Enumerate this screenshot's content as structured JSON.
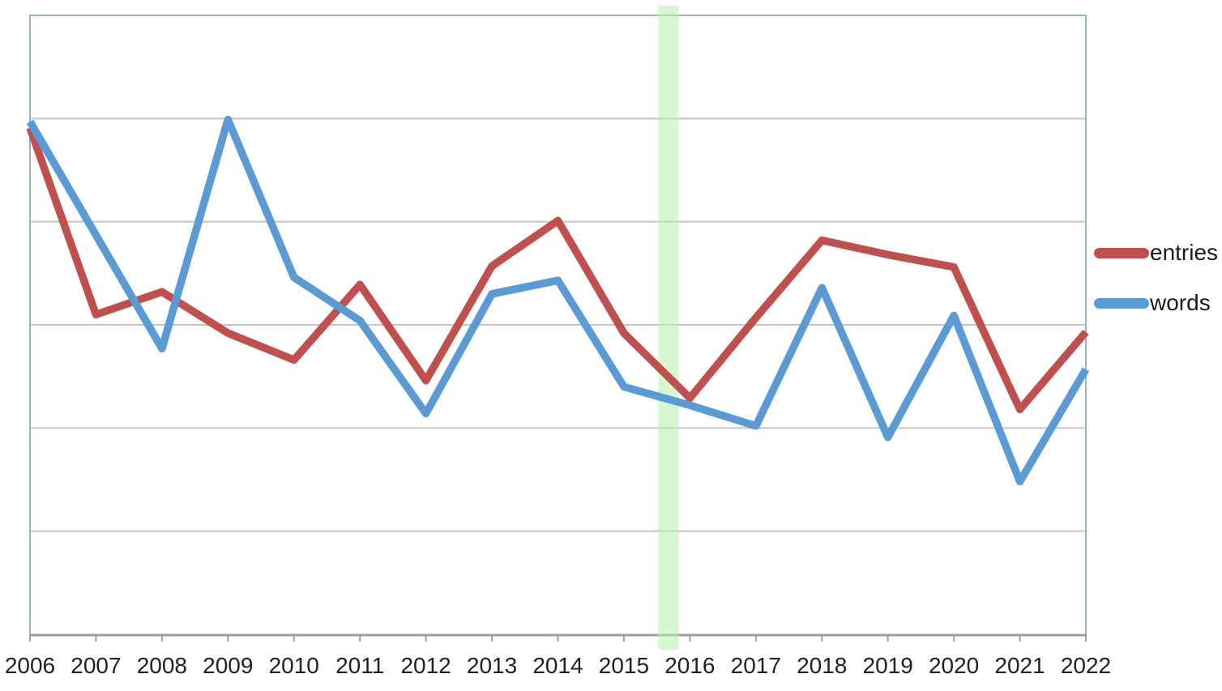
{
  "chart_data": {
    "type": "line",
    "title": "",
    "xlabel": "",
    "ylabel": "",
    "x_labels": [
      "2006",
      "2007",
      "2008",
      "2009",
      "2010",
      "2011",
      "2012",
      "2013",
      "2014",
      "2015",
      "2016",
      "2017",
      "2018",
      "2019",
      "2020",
      "2021",
      "2022"
    ],
    "x": [
      2006,
      2007,
      2008,
      2009,
      2010,
      2011,
      2012,
      2013,
      2014,
      2015,
      2016,
      2017,
      2018,
      2019,
      2020,
      2021,
      2022
    ],
    "series": [
      {
        "name": "entries",
        "color": "#C0504D",
        "values": [
          4.91,
          3.1,
          3.32,
          2.92,
          2.66,
          3.39,
          2.46,
          3.57,
          4.01,
          2.92,
          2.29,
          3.07,
          3.82,
          3.68,
          3.56,
          2.18,
          2.93
        ]
      },
      {
        "name": "words",
        "color": "#5B9BD5",
        "values": [
          4.97,
          3.87,
          2.77,
          4.99,
          3.46,
          3.04,
          2.14,
          3.3,
          3.43,
          2.4,
          2.22,
          2.02,
          3.36,
          1.91,
          3.09,
          1.48,
          2.57
        ]
      }
    ],
    "ylim": [
      0,
      6
    ],
    "y_gridlines": [
      1,
      2,
      3,
      4,
      5
    ],
    "y_axis_labels_visible": false,
    "grid": true,
    "legend_position": "right-outside",
    "highlight_band": {
      "x_from": 2015.52,
      "x_to": 2015.83,
      "color": "#B7F0AA",
      "opacity": 0.55,
      "note": "vertical highlight band just left of 2016"
    }
  },
  "styles": {
    "plot_border_color": "#95B3D7",
    "gridline_color": "#C4C4C4",
    "axis_line_color": "#9E9E9E",
    "tick_color": "#9E9E9E",
    "label_text_color": "#212121",
    "background_color": "#FFFFFF",
    "series_stroke_width": 9.5
  }
}
